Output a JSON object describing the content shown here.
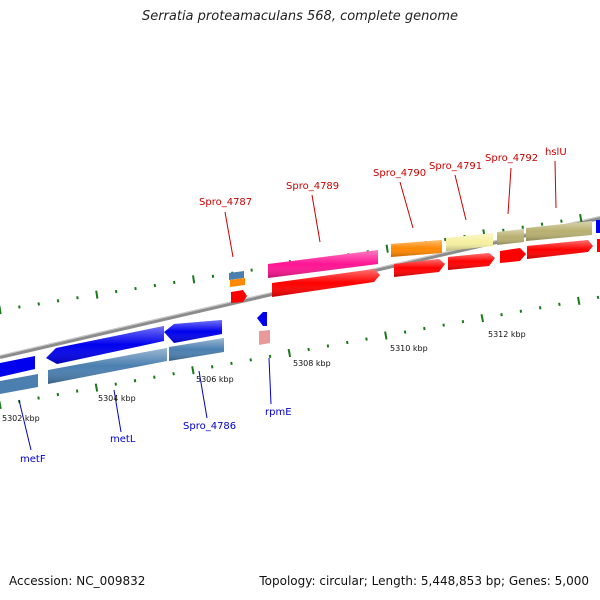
{
  "title": "Serratia proteamaculans 568, complete genome",
  "footer": {
    "accession": "Accession: NC_009832",
    "summary": "Topology: circular; Length: 5,448,853 bp; Genes: 5,000"
  },
  "colors": {
    "forward_label": "#cc0000",
    "reverse_label": "#0000cc",
    "backbone": "#888888",
    "tick": "#1a7a1a",
    "cds_forward": "#ff0000",
    "cds_reverse": "#0000ff",
    "gene_reverse": "#4a7fb0"
  },
  "scale_labels": [
    "5302 kbp",
    "5304 kbp",
    "5306 kbp",
    "5308 kbp",
    "5310 kbp",
    "5312 kbp"
  ],
  "genes_forward": [
    {
      "label": "Spro_4787",
      "color": "#cc0000"
    },
    {
      "label": "Spro_4789",
      "color": "#cc0000"
    },
    {
      "label": "Spro_4790",
      "color": "#cc0000"
    },
    {
      "label": "Spro_4791",
      "color": "#cc0000"
    },
    {
      "label": "Spro_4792",
      "color": "#cc0000"
    },
    {
      "label": "hslU",
      "color": "#cc0000"
    }
  ],
  "genes_reverse": [
    {
      "label": "metF",
      "color": "#0000cc"
    },
    {
      "label": "metL",
      "color": "#0000cc"
    },
    {
      "label": "Spro_4786",
      "color": "#0000cc"
    },
    {
      "label": "rpmE",
      "color": "#0000cc"
    }
  ]
}
